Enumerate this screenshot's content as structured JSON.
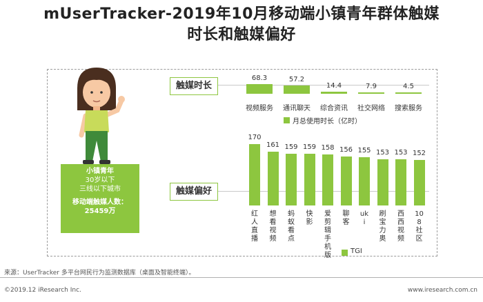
{
  "title_line1": "mUserTracker-2019年10月移动端小镇青年群体触媒",
  "title_line2": "时长和触媒偏好",
  "persona": {
    "name": "小镇青年",
    "age": "30岁以下",
    "city": "三线以下城市",
    "users_label": "移动端触媒人数：",
    "users_value": "25459万"
  },
  "colors": {
    "accent": "#8dc63f"
  },
  "chart_data": [
    {
      "type": "bar",
      "label": "触媒时长",
      "categories": [
        "视频服务",
        "通讯聊天",
        "综合资讯",
        "社交网络",
        "搜索服务"
      ],
      "values": [
        68.3,
        57.2,
        14.4,
        7.9,
        4.5
      ],
      "value_labels": [
        "68.3",
        "57.2",
        "14.4",
        "7.9",
        "4.5"
      ],
      "legend": "月总使用时长（亿时）"
    },
    {
      "type": "bar",
      "label": "触媒偏好",
      "categories": [
        "红人直播",
        "想看视频",
        "蚂蚁看点",
        "快影",
        "爱剪辑手机版",
        "聊客",
        "uki",
        "刷宝力奥",
        "西西视频",
        "108社区"
      ],
      "values": [
        170,
        161,
        159,
        159,
        158,
        156,
        155,
        153,
        153,
        152
      ],
      "value_labels": [
        "170",
        "161",
        "159",
        "159",
        "158",
        "156",
        "155",
        "153",
        "153",
        "152"
      ],
      "legend": "TGI"
    }
  ],
  "footer": {
    "source": "来源：UserTracker 多平台网民行为监测数据库（桌面及智能终端）。",
    "copyright": "©2019.12 iResearch Inc.",
    "site": "www.iresearch.com.cn"
  }
}
